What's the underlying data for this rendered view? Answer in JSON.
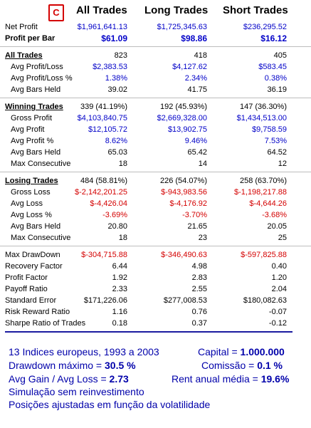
{
  "badge": "C",
  "columns": [
    "All Trades",
    "Long Trades",
    "Short Trades"
  ],
  "rows": [
    {
      "label": "Net Profit",
      "vals": [
        "$1,961,641.13",
        "$1,725,345.63",
        "$236,295.52"
      ],
      "color": "blue"
    },
    {
      "label": "Profit per Bar",
      "vals": [
        "$61.09",
        "$98.86",
        "$16.12"
      ],
      "color": "blue",
      "bold": true
    },
    {
      "label": "All Trades",
      "vals": [
        "823",
        "418",
        "405"
      ],
      "color": "black",
      "section": true
    },
    {
      "label": "Avg Profit/Loss",
      "vals": [
        "$2,383.53",
        "$4,127.62",
        "$583.45"
      ],
      "color": "blue",
      "indent": true
    },
    {
      "label": "Avg Profit/Loss %",
      "vals": [
        "1.38%",
        "2.34%",
        "0.38%"
      ],
      "color": "blue",
      "indent": true
    },
    {
      "label": "Avg Bars Held",
      "vals": [
        "39.02",
        "41.75",
        "36.19"
      ],
      "color": "black",
      "indent": true
    },
    {
      "label": "Winning Trades",
      "vals": [
        "339 (41.19%)",
        "192 (45.93%)",
        "147 (36.30%)"
      ],
      "color": "black",
      "section": true
    },
    {
      "label": "Gross Profit",
      "vals": [
        "$4,103,840.75",
        "$2,669,328.00",
        "$1,434,513.00"
      ],
      "color": "blue",
      "indent": true
    },
    {
      "label": "Avg Profit",
      "vals": [
        "$12,105.72",
        "$13,902.75",
        "$9,758.59"
      ],
      "color": "blue",
      "indent": true
    },
    {
      "label": "Avg Profit %",
      "vals": [
        "8.62%",
        "9.46%",
        "7.53%"
      ],
      "color": "blue",
      "indent": true
    },
    {
      "label": "Avg Bars Held",
      "vals": [
        "65.03",
        "65.42",
        "64.52"
      ],
      "color": "black",
      "indent": true
    },
    {
      "label": "Max Consecutive",
      "vals": [
        "18",
        "14",
        "12"
      ],
      "color": "black",
      "indent": true
    },
    {
      "label": "Losing Trades",
      "vals": [
        "484 (58.81%)",
        "226 (54.07%)",
        "258 (63.70%)"
      ],
      "color": "black",
      "section": true
    },
    {
      "label": "Gross Loss",
      "vals": [
        "$-2,142,201.25",
        "$-943,983.56",
        "$-1,198,217.88"
      ],
      "color": "red",
      "indent": true
    },
    {
      "label": "Avg Loss",
      "vals": [
        "$-4,426.04",
        "$-4,176.92",
        "$-4,644.26"
      ],
      "color": "red",
      "indent": true
    },
    {
      "label": "Avg Loss %",
      "vals": [
        "-3.69%",
        "-3.70%",
        "-3.68%"
      ],
      "color": "red",
      "indent": true
    },
    {
      "label": "Avg Bars Held",
      "vals": [
        "20.80",
        "21.65",
        "20.05"
      ],
      "color": "black",
      "indent": true
    },
    {
      "label": "Max Consecutive",
      "vals": [
        "18",
        "23",
        "25"
      ],
      "color": "black",
      "indent": true
    },
    {
      "label": "Max DrawDown",
      "vals": [
        "$-304,715.88",
        "$-346,490.63",
        "$-597,825.88"
      ],
      "color": "red"
    },
    {
      "label": "Recovery Factor",
      "vals": [
        "6.44",
        "4.98",
        "0.40"
      ],
      "color": "black"
    },
    {
      "label": "Profit Factor",
      "vals": [
        "1.92",
        "2.83",
        "1.20"
      ],
      "color": "black"
    },
    {
      "label": "Payoff Ratio",
      "vals": [
        "2.33",
        "2.55",
        "2.04"
      ],
      "color": "black"
    },
    {
      "label": "Standard Error",
      "vals": [
        "$171,226.06",
        "$277,008.53",
        "$180,082.63"
      ],
      "color": "black"
    },
    {
      "label": "Risk Reward Ratio",
      "vals": [
        "1.16",
        "0.76",
        "-0.07"
      ],
      "color": "black"
    },
    {
      "label": "Sharpe Ratio of Trades",
      "vals": [
        "0.18",
        "0.37",
        "-0.12"
      ],
      "color": "black"
    }
  ],
  "footer": {
    "line1_left": "13 Indices europeus, 1993 a 2003",
    "capital_label": "Capital = ",
    "capital_value": "1.000.000",
    "drawdown_label": "Drawdown máximo = ",
    "drawdown_value": "30.5 %",
    "comissao_label": "Comissão = ",
    "comissao_value": "0.1 %",
    "avggain_label": "Avg Gain / Avg Loss = ",
    "avggain_value": "2.73",
    "rent_label": "Rent anual média = ",
    "rent_value": "19.6%",
    "line4": "Simulação sem reinvestimento",
    "line5": "Posições ajustadas em função da volatilidade"
  },
  "colors": {
    "blue": "#0000c8",
    "red": "#d40000",
    "accent": "#1a1aa0"
  }
}
